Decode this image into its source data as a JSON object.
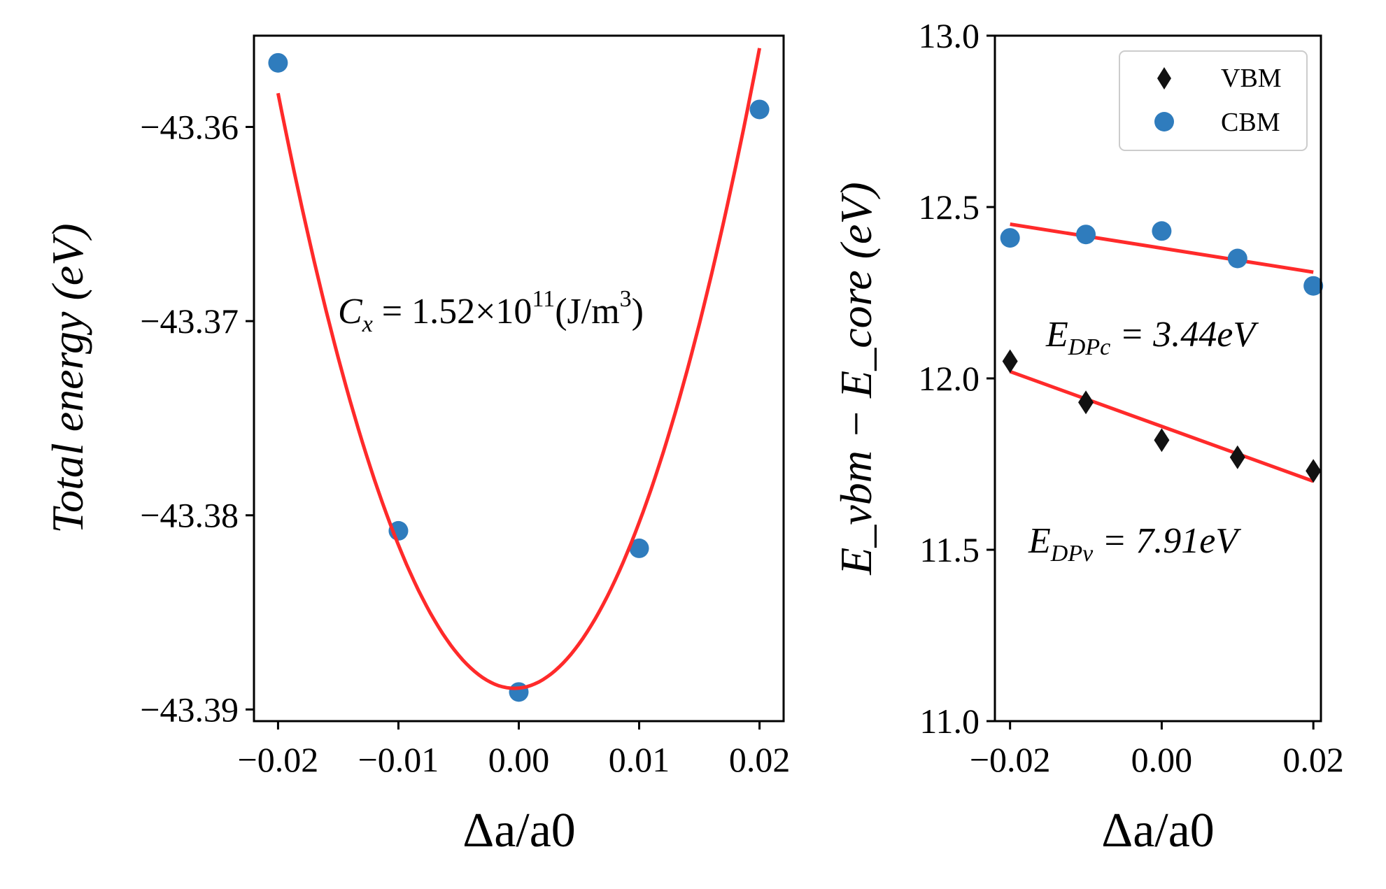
{
  "colors": {
    "marker_blue": "#2f7cbd",
    "fit_red": "#ff2a2a",
    "marker_black": "#111111"
  },
  "chart_data": [
    {
      "type": "scatter",
      "panel": "left",
      "xlabel": "Δa/a0",
      "ylabel": "Total energy (eV)",
      "xlim": [
        -0.022,
        0.022
      ],
      "ylim": [
        -43.3906,
        -43.3553
      ],
      "xticks": [
        -0.02,
        -0.01,
        0.0,
        0.01,
        0.02
      ],
      "xtick_labels": [
        "−0.02",
        "−0.01",
        "0.00",
        "0.01",
        "0.02"
      ],
      "yticks": [
        -43.36,
        -43.37,
        -43.38,
        -43.39
      ],
      "ytick_labels": [
        "−43.36",
        "−43.37",
        "−43.38",
        "−43.39"
      ],
      "series": [
        {
          "name": "Total energy",
          "marker": "circle",
          "color": "#2f7cbd",
          "x": [
            -0.02,
            -0.01,
            0.0,
            0.01,
            0.02
          ],
          "y": [
            -43.3567,
            -43.3808,
            -43.3891,
            -43.3817,
            -43.3591
          ]
        },
        {
          "name": "quadratic fit",
          "kind": "fit-curve",
          "color": "#ff2a2a",
          "coefficients": {
            "a": 79.5,
            "b": 0.058,
            "c": -43.3889
          },
          "x_range": [
            -0.02,
            0.02
          ]
        }
      ],
      "annotation": {
        "text": "C_x = 1.52×10^11 (J/m^3)",
        "C": "C",
        "C_sub": "x",
        "eq": " = ",
        "mantissa": "1.52×10",
        "exp": "11",
        "unit_pre": "(J/m",
        "unit_exp": "3",
        "unit_post": ")"
      }
    },
    {
      "type": "scatter",
      "panel": "right",
      "xlabel": "Δa/a0",
      "ylabel": "E_vbm − E_core (eV)",
      "xlim": [
        -0.022,
        0.021
      ],
      "ylim": [
        11.0,
        13.0
      ],
      "xticks": [
        -0.02,
        0.0,
        0.02
      ],
      "xtick_labels": [
        "−0.02",
        "0.00",
        "0.02"
      ],
      "yticks": [
        11.0,
        11.5,
        12.0,
        12.5,
        13.0
      ],
      "ytick_labels": [
        "11.0",
        "11.5",
        "12.0",
        "12.5",
        "13.0"
      ],
      "legend": {
        "position": "top-right",
        "entries": [
          {
            "label": "VBM",
            "marker": "diamond",
            "color": "#111111"
          },
          {
            "label": "CBM",
            "marker": "circle",
            "color": "#2f7cbd"
          }
        ]
      },
      "series": [
        {
          "name": "VBM",
          "marker": "diamond",
          "color": "#111111",
          "x": [
            -0.02,
            -0.01,
            0.0,
            0.01,
            0.02
          ],
          "y": [
            12.05,
            11.93,
            11.82,
            11.77,
            11.73
          ]
        },
        {
          "name": "CBM",
          "marker": "circle",
          "color": "#2f7cbd",
          "x": [
            -0.02,
            -0.01,
            0.0,
            0.01,
            0.02
          ],
          "y": [
            12.41,
            12.42,
            12.43,
            12.35,
            12.27
          ]
        },
        {
          "name": "VBM fit",
          "kind": "fit-line",
          "color": "#ff2a2a",
          "x": [
            -0.02,
            0.02
          ],
          "y": [
            12.02,
            11.7
          ]
        },
        {
          "name": "CBM fit",
          "kind": "fit-line",
          "color": "#ff2a2a",
          "x": [
            -0.02,
            0.02
          ],
          "y": [
            12.45,
            12.31
          ]
        }
      ],
      "annotations": [
        {
          "text": "E_DPc = 3.44eV",
          "E": "E",
          "sub": "DPc",
          "rest": " = 3.44eV"
        },
        {
          "text": "E_DPv = 7.91eV",
          "E": "E",
          "sub": "DPv",
          "rest": " = 7.91eV"
        }
      ]
    }
  ]
}
